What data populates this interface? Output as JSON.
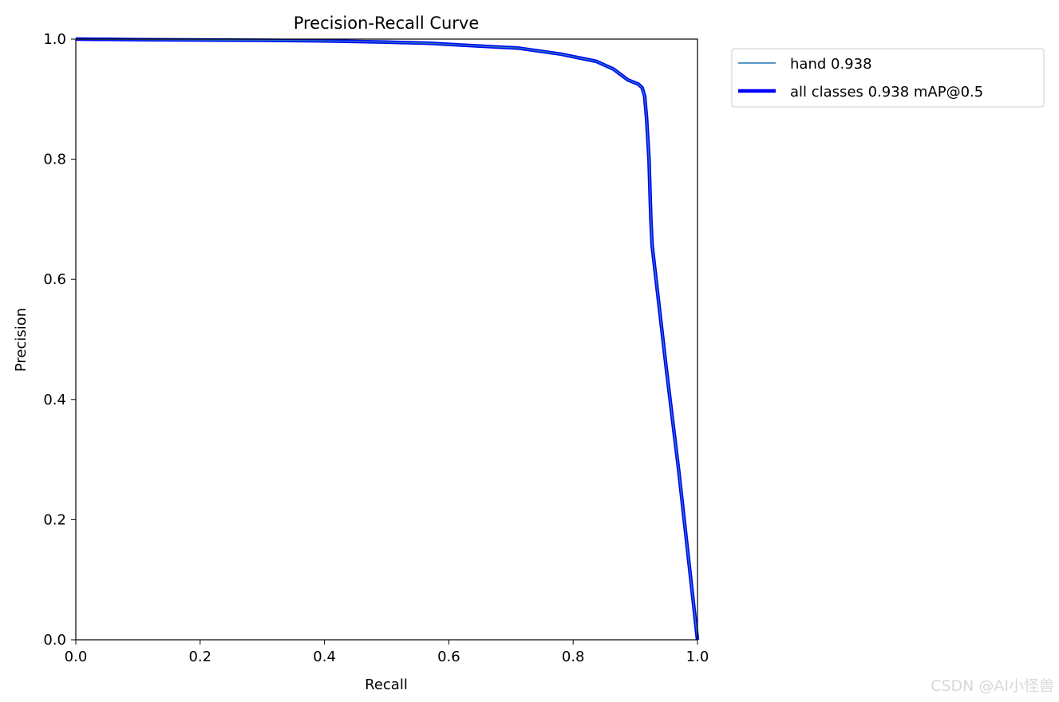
{
  "chart_data": {
    "type": "line",
    "title": "Precision-Recall Curve",
    "xlabel": "Recall",
    "ylabel": "Precision",
    "xlim": [
      0,
      1
    ],
    "ylim": [
      0,
      1
    ],
    "xticks": [
      "0.0",
      "0.2",
      "0.4",
      "0.6",
      "0.8",
      "1.0"
    ],
    "yticks": [
      "0.0",
      "0.2",
      "0.4",
      "0.6",
      "0.8",
      "1.0"
    ],
    "grid": false,
    "legend_position": "outside-top-right",
    "series": [
      {
        "name": "hand 0.938",
        "color": "#1f77b4",
        "width": "thin",
        "x": [
          0,
          0.1,
          0.3,
          0.4,
          0.5,
          0.57,
          0.62,
          0.712,
          0.78,
          0.837,
          0.865,
          0.888,
          0.905,
          0.911,
          0.915,
          0.918,
          0.922,
          0.925,
          0.927,
          0.95,
          0.97,
          1.0
        ],
        "y": [
          1,
          0.999,
          0.998,
          0.997,
          0.995,
          0.993,
          0.99,
          0.985,
          0.975,
          0.963,
          0.95,
          0.932,
          0.925,
          0.919,
          0.905,
          0.87,
          0.8,
          0.7,
          0.657,
          0.45,
          0.28,
          0
        ]
      },
      {
        "name": "all classes 0.938 mAP@0.5",
        "color": "#0000ff",
        "width": "thick",
        "x": [
          0,
          0.1,
          0.3,
          0.4,
          0.5,
          0.57,
          0.62,
          0.712,
          0.78,
          0.837,
          0.865,
          0.888,
          0.905,
          0.911,
          0.915,
          0.918,
          0.922,
          0.925,
          0.927,
          0.95,
          0.97,
          1.0
        ],
        "y": [
          1,
          0.999,
          0.998,
          0.997,
          0.995,
          0.993,
          0.99,
          0.985,
          0.975,
          0.963,
          0.95,
          0.932,
          0.925,
          0.919,
          0.905,
          0.87,
          0.8,
          0.7,
          0.657,
          0.45,
          0.28,
          0
        ]
      }
    ]
  },
  "watermark": "CSDN @AI小怪兽"
}
